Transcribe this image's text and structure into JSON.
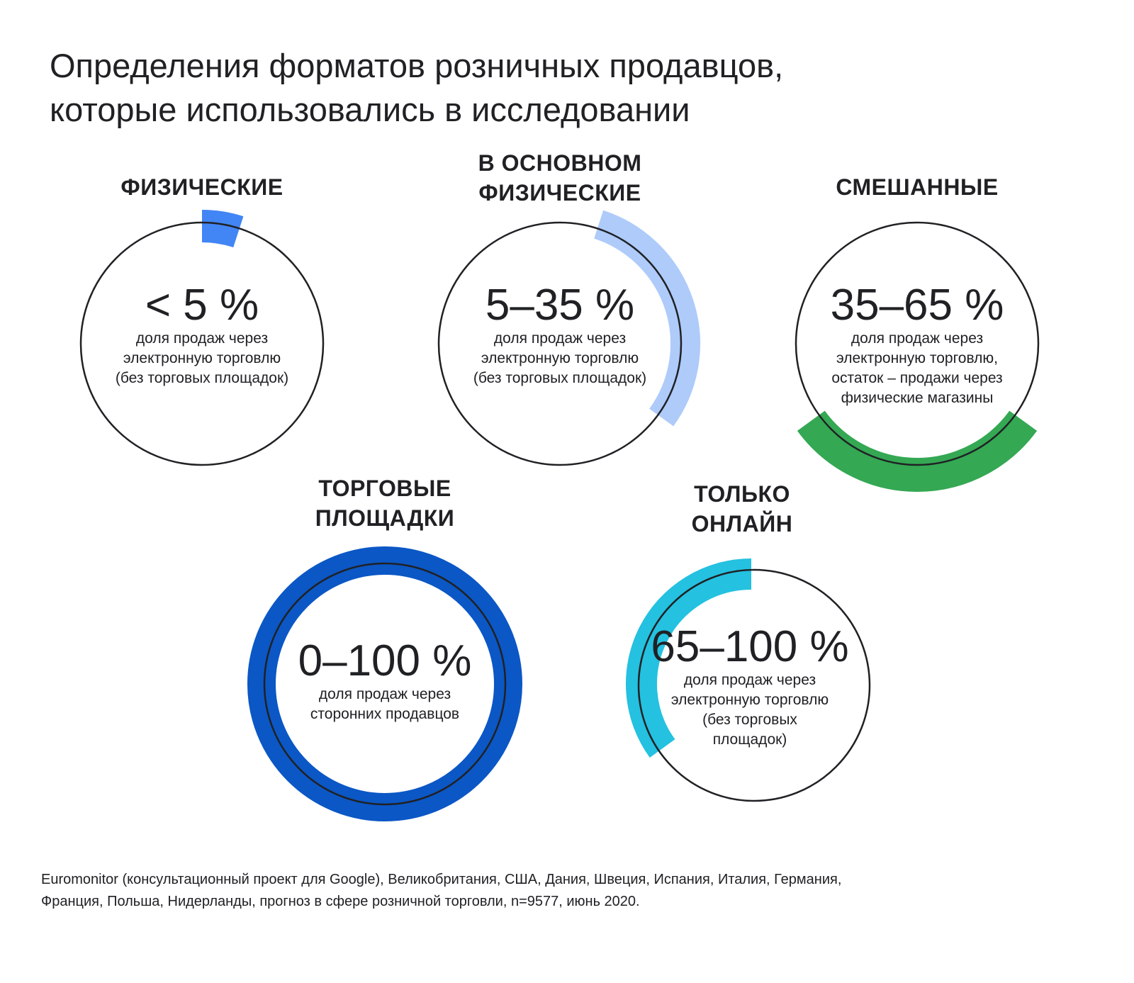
{
  "title_lines": [
    "Определения форматов розничных продавцов,",
    "которые использовались в исследовании"
  ],
  "formats": [
    {
      "heading": [
        "ФИЗИЧЕСКИЕ"
      ],
      "range": "< 5 %",
      "from": 0,
      "to": 5,
      "color": "#4285F4",
      "desc": [
        "доля продаж через",
        "электронную торговлю",
        "(без торговых площадок)"
      ]
    },
    {
      "heading": [
        "В ОСНОВНОМ",
        "ФИЗИЧЕСКИЕ"
      ],
      "range": "5–35 %",
      "from": 5,
      "to": 35,
      "color": "#AECBFA",
      "desc": [
        "доля продаж через",
        "электронную торговлю",
        "(без торговых площадок)"
      ]
    },
    {
      "heading": [
        "СМЕШАННЫЕ"
      ],
      "range": "35–65 %",
      "from": 35,
      "to": 65,
      "color": "#34A853",
      "desc": [
        "доля продаж через",
        "электронную торговлю,",
        "остаток – продажи через",
        "физические магазины"
      ]
    },
    {
      "heading": [
        "ТОРГОВЫЕ",
        "ПЛОЩАДКИ"
      ],
      "range": "0–100 %",
      "from": 0,
      "to": 100,
      "color": "#0B57C5",
      "desc": [
        "доля продаж через",
        "сторонних продавцов"
      ]
    },
    {
      "heading": [
        "ТОЛЬКО",
        "ОНЛАЙН"
      ],
      "range": "65–100 %",
      "from": 65,
      "to": 100,
      "color": "#24C1E0",
      "desc": [
        "доля продаж через",
        "электронную торговлю",
        "(без торговых",
        "площадок)"
      ]
    }
  ],
  "source_lines": [
    "Euromonitor (консультационный проект для Google), Великобритания, США, Дания, Швеция, Испания, Италия, Германия,",
    "Франция, Польша, Нидерланды, прогноз в сфере розничной торговли, n=9577, июнь 2020."
  ]
}
